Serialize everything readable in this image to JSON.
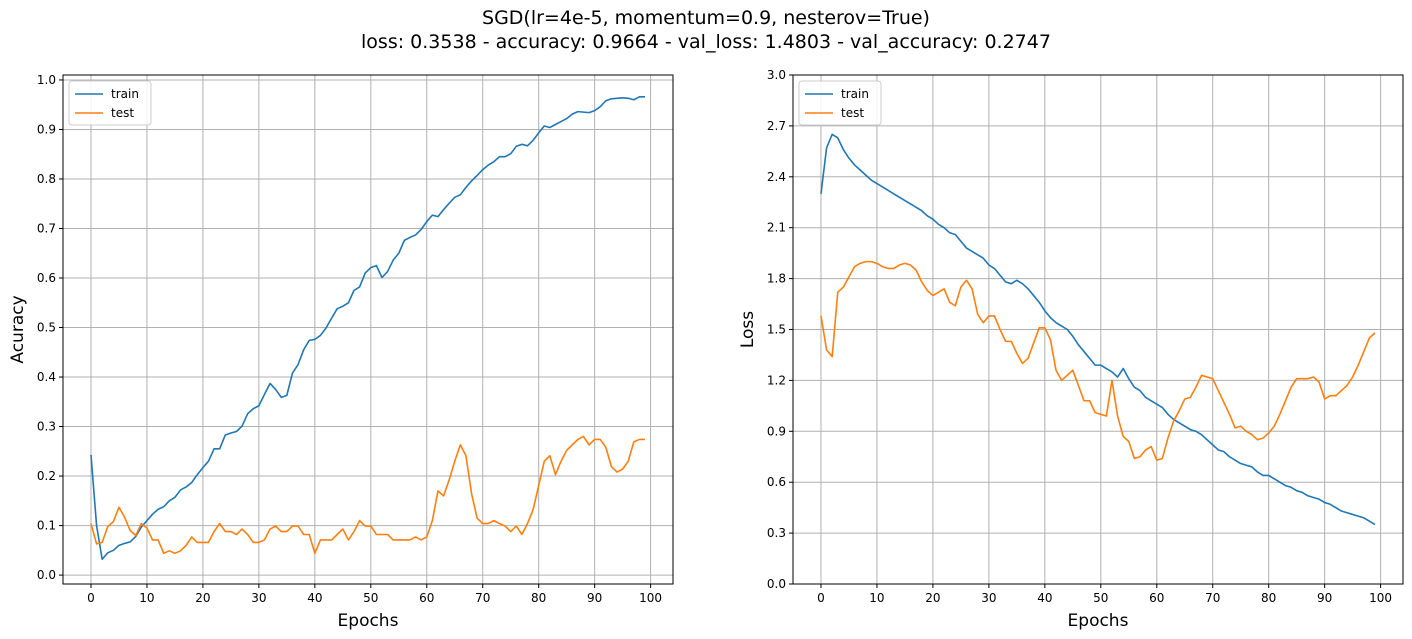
{
  "title_lines": [
    "SGD(lr=4e-5, momentum=0.9, nesterov=True)",
    "loss: 0.3538 - accuracy: 0.9664 - val_loss: 1.4803 - val_accuracy: 0.2747"
  ],
  "chart_data": [
    {
      "type": "line",
      "xlabel": "Epochs",
      "ylabel": "Acuracy",
      "xlim": [
        -5,
        104
      ],
      "ylim": [
        -0.018,
        1.01
      ],
      "xticks": [
        0,
        10,
        20,
        30,
        40,
        50,
        60,
        70,
        80,
        90,
        100
      ],
      "yticks": [
        0.0,
        0.1,
        0.2,
        0.3,
        0.4,
        0.5,
        0.6,
        0.7,
        0.8,
        0.9,
        1.0
      ],
      "ytick_labels": [
        "0.0",
        "0.1",
        "0.2",
        "0.3",
        "0.4",
        "0.5",
        "0.6",
        "0.7",
        "0.8",
        "0.9",
        "1.0"
      ],
      "grid": true,
      "legend": "top-left",
      "series": [
        {
          "name": "train",
          "color": "#1f77b4",
          "values": [
            0.243,
            0.1,
            0.032,
            0.045,
            0.05,
            0.06,
            0.064,
            0.067,
            0.078,
            0.097,
            0.11,
            0.123,
            0.133,
            0.138,
            0.15,
            0.157,
            0.172,
            0.178,
            0.187,
            0.203,
            0.217,
            0.23,
            0.255,
            0.255,
            0.283,
            0.287,
            0.29,
            0.301,
            0.326,
            0.336,
            0.342,
            0.365,
            0.387,
            0.375,
            0.359,
            0.363,
            0.408,
            0.425,
            0.455,
            0.474,
            0.476,
            0.484,
            0.499,
            0.519,
            0.538,
            0.543,
            0.55,
            0.575,
            0.582,
            0.61,
            0.621,
            0.625,
            0.601,
            0.613,
            0.636,
            0.65,
            0.676,
            0.682,
            0.687,
            0.698,
            0.714,
            0.727,
            0.724,
            0.738,
            0.751,
            0.763,
            0.768,
            0.783,
            0.796,
            0.807,
            0.819,
            0.828,
            0.835,
            0.845,
            0.845,
            0.851,
            0.866,
            0.87,
            0.867,
            0.878,
            0.893,
            0.907,
            0.904,
            0.91,
            0.916,
            0.922,
            0.931,
            0.936,
            0.935,
            0.934,
            0.938,
            0.946,
            0.958,
            0.962,
            0.963,
            0.964,
            0.963,
            0.96,
            0.966,
            0.966
          ]
        },
        {
          "name": "test",
          "color": "#ff7f0e",
          "values": [
            0.104,
            0.063,
            0.066,
            0.098,
            0.108,
            0.137,
            0.117,
            0.09,
            0.08,
            0.104,
            0.095,
            0.071,
            0.071,
            0.044,
            0.049,
            0.044,
            0.049,
            0.06,
            0.077,
            0.066,
            0.066,
            0.066,
            0.088,
            0.104,
            0.088,
            0.088,
            0.082,
            0.093,
            0.082,
            0.066,
            0.066,
            0.071,
            0.093,
            0.099,
            0.088,
            0.088,
            0.099,
            0.099,
            0.082,
            0.082,
            0.044,
            0.071,
            0.071,
            0.071,
            0.082,
            0.093,
            0.071,
            0.088,
            0.11,
            0.099,
            0.099,
            0.082,
            0.082,
            0.082,
            0.071,
            0.071,
            0.071,
            0.071,
            0.077,
            0.071,
            0.077,
            0.11,
            0.17,
            0.16,
            0.192,
            0.23,
            0.263,
            0.241,
            0.165,
            0.115,
            0.104,
            0.104,
            0.11,
            0.104,
            0.099,
            0.088,
            0.099,
            0.082,
            0.104,
            0.132,
            0.181,
            0.23,
            0.241,
            0.203,
            0.23,
            0.252,
            0.263,
            0.274,
            0.28,
            0.263,
            0.274,
            0.274,
            0.258,
            0.219,
            0.208,
            0.214,
            0.23,
            0.269,
            0.274,
            0.274
          ]
        }
      ]
    },
    {
      "type": "line",
      "xlabel": "Epochs",
      "ylabel": "Loss",
      "xlim": [
        -5,
        104
      ],
      "ylim": [
        0.0,
        3.0
      ],
      "xticks": [
        0,
        10,
        20,
        30,
        40,
        50,
        60,
        70,
        80,
        90,
        100
      ],
      "yticks": [
        0.0,
        0.3,
        0.6,
        0.9,
        1.2,
        1.5,
        1.8,
        2.1,
        2.4,
        2.7,
        3.0
      ],
      "ytick_labels": [
        "0.0",
        "0.3",
        "0.6",
        "0.9",
        "1.2",
        "1.5",
        "1.8",
        "2.1",
        "2.4",
        "2.7",
        "3.0"
      ],
      "grid": true,
      "legend": "top-left",
      "series": [
        {
          "name": "train",
          "color": "#1f77b4",
          "values": [
            2.3,
            2.57,
            2.65,
            2.63,
            2.56,
            2.51,
            2.47,
            2.44,
            2.41,
            2.38,
            2.36,
            2.34,
            2.32,
            2.3,
            2.28,
            2.26,
            2.24,
            2.22,
            2.2,
            2.17,
            2.15,
            2.12,
            2.1,
            2.07,
            2.06,
            2.02,
            1.98,
            1.96,
            1.94,
            1.92,
            1.88,
            1.86,
            1.82,
            1.78,
            1.77,
            1.79,
            1.77,
            1.74,
            1.7,
            1.66,
            1.61,
            1.57,
            1.54,
            1.52,
            1.5,
            1.46,
            1.41,
            1.37,
            1.33,
            1.29,
            1.29,
            1.27,
            1.25,
            1.22,
            1.27,
            1.21,
            1.16,
            1.14,
            1.1,
            1.08,
            1.06,
            1.04,
            1.0,
            0.97,
            0.95,
            0.93,
            0.91,
            0.9,
            0.88,
            0.85,
            0.82,
            0.79,
            0.78,
            0.75,
            0.73,
            0.71,
            0.7,
            0.69,
            0.66,
            0.64,
            0.64,
            0.62,
            0.6,
            0.58,
            0.57,
            0.55,
            0.54,
            0.52,
            0.51,
            0.5,
            0.48,
            0.47,
            0.45,
            0.43,
            0.42,
            0.41,
            0.4,
            0.39,
            0.37,
            0.35
          ]
        },
        {
          "name": "test",
          "color": "#ff7f0e",
          "values": [
            1.58,
            1.38,
            1.34,
            1.72,
            1.75,
            1.81,
            1.87,
            1.89,
            1.9,
            1.9,
            1.89,
            1.87,
            1.86,
            1.86,
            1.88,
            1.89,
            1.88,
            1.85,
            1.78,
            1.73,
            1.7,
            1.72,
            1.74,
            1.66,
            1.64,
            1.75,
            1.79,
            1.74,
            1.59,
            1.54,
            1.58,
            1.58,
            1.5,
            1.43,
            1.43,
            1.36,
            1.3,
            1.33,
            1.42,
            1.51,
            1.51,
            1.44,
            1.26,
            1.2,
            1.23,
            1.26,
            1.17,
            1.08,
            1.08,
            1.01,
            1.0,
            0.99,
            1.2,
            0.99,
            0.87,
            0.84,
            0.74,
            0.75,
            0.79,
            0.81,
            0.73,
            0.74,
            0.86,
            0.96,
            1.02,
            1.09,
            1.1,
            1.16,
            1.23,
            1.22,
            1.21,
            1.14,
            1.07,
            1.0,
            0.92,
            0.93,
            0.9,
            0.88,
            0.85,
            0.86,
            0.89,
            0.93,
            1.0,
            1.08,
            1.16,
            1.21,
            1.21,
            1.21,
            1.22,
            1.19,
            1.09,
            1.11,
            1.11,
            1.14,
            1.17,
            1.22,
            1.29,
            1.37,
            1.45,
            1.48
          ]
        }
      ]
    }
  ]
}
